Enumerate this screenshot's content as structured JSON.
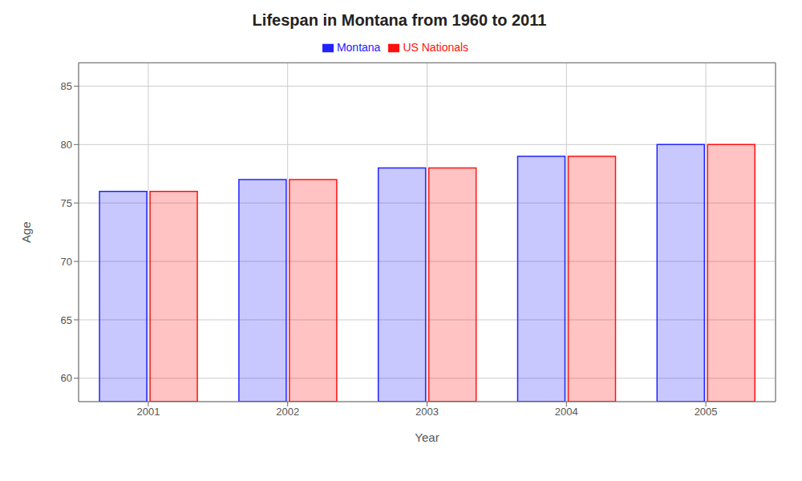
{
  "chart_data": {
    "type": "bar",
    "title": "Lifespan in Montana from 1960 to 2011",
    "xlabel": "Year",
    "ylabel": "Age",
    "categories": [
      "2001",
      "2002",
      "2003",
      "2004",
      "2005"
    ],
    "series": [
      {
        "name": "Montana",
        "color": "#2222ff",
        "values": [
          76,
          77,
          78,
          79,
          80
        ]
      },
      {
        "name": "US Nationals",
        "color": "#ff1111",
        "values": [
          76,
          77,
          78,
          79,
          80
        ]
      }
    ],
    "ylim": [
      58,
      87
    ],
    "yticks": [
      60,
      65,
      70,
      75,
      80,
      85
    ],
    "grid": true,
    "legend": "top"
  }
}
